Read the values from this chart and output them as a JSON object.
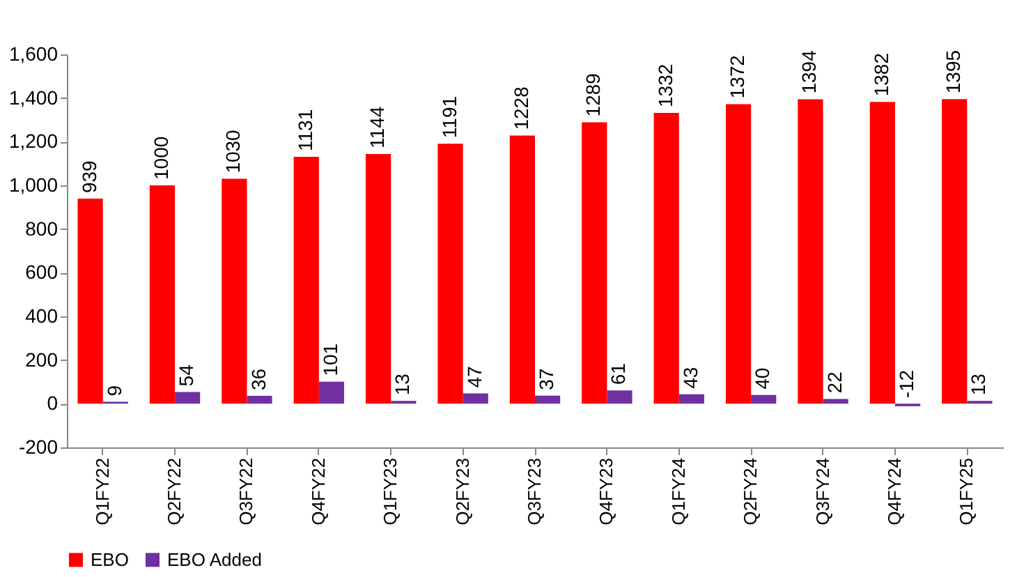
{
  "chart_data": {
    "type": "bar",
    "categories": [
      "Q1FY22",
      "Q2FY22",
      "Q3FY22",
      "Q4FY22",
      "Q1FY23",
      "Q2FY23",
      "Q3FY23",
      "Q4FY23",
      "Q1FY24",
      "Q2FY24",
      "Q3FY24",
      "Q4FY24",
      "Q1FY25"
    ],
    "series": [
      {
        "name": "EBO",
        "color": "#ff0000",
        "values": [
          939,
          1000,
          1030,
          1131,
          1144,
          1191,
          1228,
          1289,
          1332,
          1372,
          1394,
          1382,
          1395
        ]
      },
      {
        "name": "EBO Added",
        "color": "#7030a0",
        "values": [
          9,
          54,
          36,
          101,
          13,
          47,
          37,
          61,
          43,
          40,
          22,
          -12,
          13
        ]
      }
    ],
    "ylim": [
      -200,
      1600
    ],
    "yticks": [
      -200,
      0,
      200,
      400,
      600,
      800,
      {
        "value": 1000,
        "label": "1,000"
      },
      {
        "value": 1200,
        "label": "1,200"
      },
      {
        "value": 1400,
        "label": "1,400"
      },
      {
        "value": 1600,
        "label": "1,600"
      }
    ],
    "data_labels": true,
    "grid": false,
    "legend": "bottom"
  }
}
